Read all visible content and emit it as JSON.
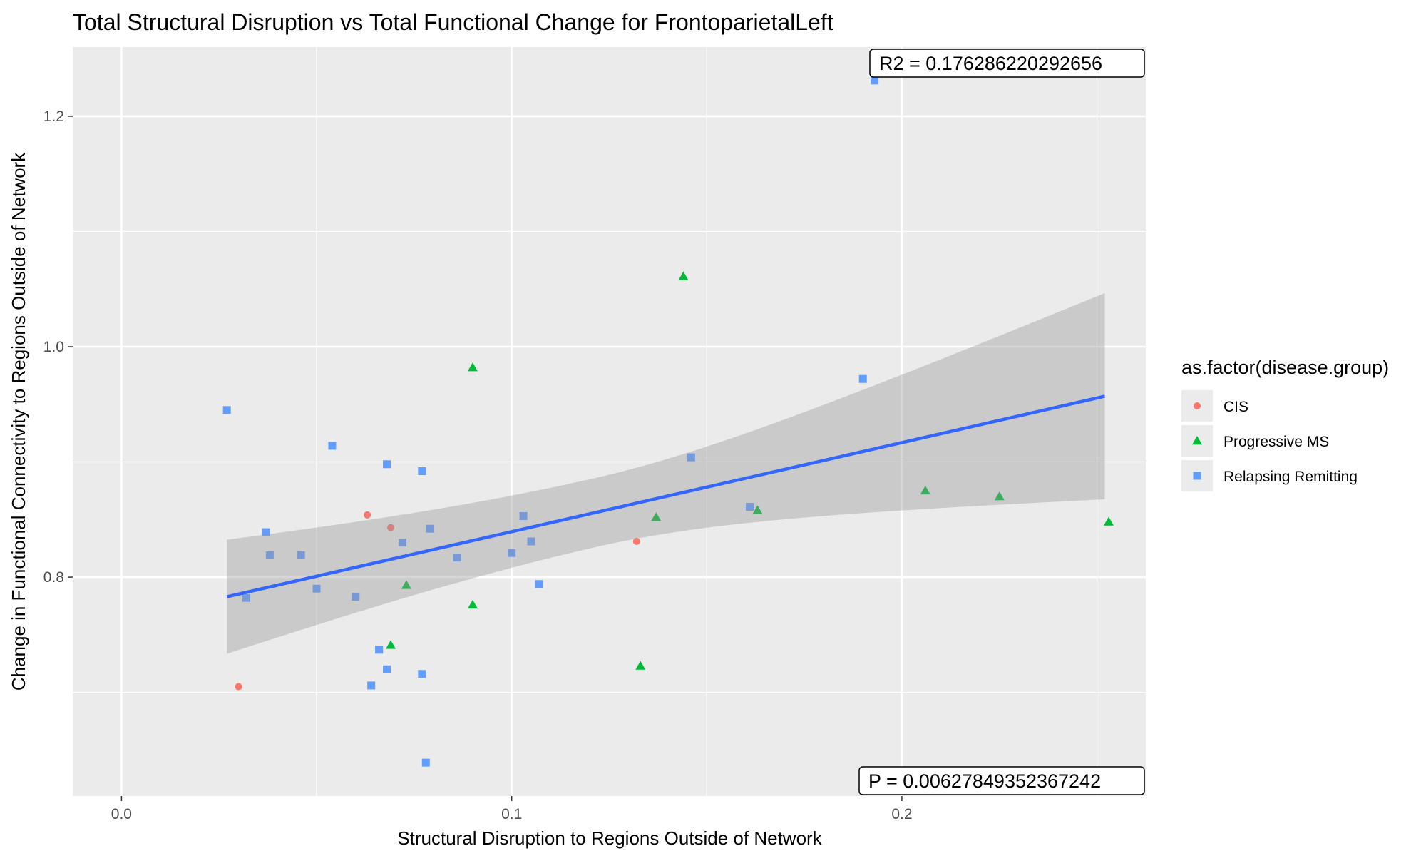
{
  "chart_data": {
    "type": "scatter",
    "title": "Total Structural Disruption vs Total Functional Change for FrontoparietalLeft",
    "xlabel": "Structural Disruption to Regions Outside of Network",
    "ylabel": "Change in Functional Connectivity to Regions Outside of Network",
    "xlim": [
      -0.0125,
      0.2625
    ],
    "ylim": [
      0.61,
      1.26
    ],
    "x_ticks": [
      0.0,
      0.1,
      0.2
    ],
    "x_tick_labels": [
      "0.0",
      "0.1",
      "0.2"
    ],
    "y_ticks": [
      0.8,
      1.0,
      1.2
    ],
    "y_tick_labels": [
      "0.8",
      "1.0",
      "1.2"
    ],
    "grid": true,
    "legend": {
      "title": "as.factor(disease.group)",
      "position": "right"
    },
    "annotations": {
      "r2": "R2 =  0.176286220292656",
      "p": "P =  0.00627849352367242"
    },
    "fit_line": {
      "x": [
        0.027,
        0.252
      ],
      "y": [
        0.783,
        0.957
      ],
      "ci_lower": [
        0.733,
        0.868
      ],
      "ci_upper": [
        0.832,
        1.047
      ],
      "color": "#3366FF",
      "band_color": "#999999"
    },
    "series": [
      {
        "name": "CIS",
        "marker": "circle",
        "color": "#F8766D",
        "points": [
          [
            0.03,
            0.705
          ],
          [
            0.063,
            0.854
          ],
          [
            0.069,
            0.843
          ],
          [
            0.132,
            0.831
          ]
        ]
      },
      {
        "name": "Progressive MS",
        "marker": "triangle",
        "color": "#00BA38",
        "points": [
          [
            0.069,
            0.741
          ],
          [
            0.073,
            0.793
          ],
          [
            0.09,
            0.982
          ],
          [
            0.09,
            0.776
          ],
          [
            0.133,
            0.723
          ],
          [
            0.137,
            0.852
          ],
          [
            0.144,
            1.061
          ],
          [
            0.163,
            0.858
          ],
          [
            0.206,
            0.875
          ],
          [
            0.225,
            0.87
          ],
          [
            0.253,
            0.848
          ]
        ]
      },
      {
        "name": "Relapsing Remitting",
        "marker": "square",
        "color": "#619CFF",
        "points": [
          [
            0.027,
            0.945
          ],
          [
            0.032,
            0.782
          ],
          [
            0.037,
            0.839
          ],
          [
            0.038,
            0.819
          ],
          [
            0.046,
            0.819
          ],
          [
            0.05,
            0.79
          ],
          [
            0.054,
            0.914
          ],
          [
            0.06,
            0.783
          ],
          [
            0.064,
            0.706
          ],
          [
            0.066,
            0.737
          ],
          [
            0.068,
            0.72
          ],
          [
            0.068,
            0.898
          ],
          [
            0.072,
            0.83
          ],
          [
            0.077,
            0.892
          ],
          [
            0.077,
            0.716
          ],
          [
            0.078,
            0.639
          ],
          [
            0.079,
            0.842
          ],
          [
            0.086,
            0.817
          ],
          [
            0.1,
            0.821
          ],
          [
            0.103,
            0.853
          ],
          [
            0.105,
            0.831
          ],
          [
            0.107,
            0.794
          ],
          [
            0.146,
            0.904
          ],
          [
            0.161,
            0.861
          ],
          [
            0.19,
            0.972
          ],
          [
            0.193,
            1.231
          ]
        ]
      }
    ]
  }
}
